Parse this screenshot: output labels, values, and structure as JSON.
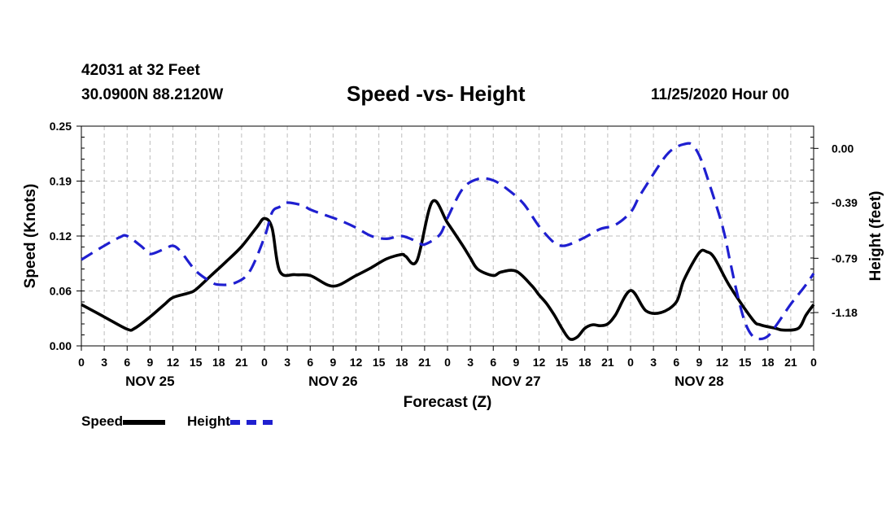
{
  "header": {
    "station": "42031 at 32 Feet",
    "coords": "30.0900N 88.2120W",
    "datetime": "11/25/2020 Hour 00"
  },
  "legend": {
    "speed_label": "Speed",
    "height_label": "Height"
  },
  "colors": {
    "speed": "#000000",
    "height": "#1f1fd0",
    "grid": "#bdbdbd"
  },
  "chart_data": {
    "type": "line",
    "title": "Speed -vs- Height",
    "xlabel": "Forecast (Z)",
    "ylabel": "Speed (Knots)",
    "y2label": "Height (feet)",
    "xlim": [
      0,
      96
    ],
    "ylim": [
      0.0,
      0.25
    ],
    "y2lim": [
      -1.42,
      0.16
    ],
    "y_ticks": [
      "0.00",
      "0.06",
      "0.12",
      "0.19",
      "0.25"
    ],
    "y_tick_values": [
      0.0,
      0.0625,
      0.125,
      0.1875,
      0.25
    ],
    "y2_ticks": [
      "0.00",
      "-0.39",
      "-0.79",
      "-1.18"
    ],
    "y2_tick_values": [
      0.0,
      -0.39,
      -0.79,
      -1.18
    ],
    "x_tick_labels": [
      "0",
      "3",
      "6",
      "9",
      "12",
      "15",
      "18",
      "21",
      "0",
      "3",
      "6",
      "9",
      "12",
      "15",
      "18",
      "21",
      "0",
      "3",
      "6",
      "9",
      "12",
      "15",
      "18",
      "21",
      "0",
      "3",
      "6",
      "9",
      "12",
      "15",
      "18",
      "21",
      "0"
    ],
    "day_labels": [
      {
        "label": "NOV 25",
        "x": 9
      },
      {
        "label": "NOV 26",
        "x": 33
      },
      {
        "label": "NOV 27",
        "x": 57
      },
      {
        "label": "NOV 28",
        "x": 81
      }
    ],
    "grid": true,
    "series": [
      {
        "name": "Speed",
        "axis": "left",
        "x": [
          0,
          3,
          6,
          7,
          9,
          11,
          12,
          14,
          15,
          17,
          19,
          21,
          23,
          24,
          25,
          26,
          28,
          30,
          33,
          36,
          38,
          40,
          42,
          42.5,
          44,
          46,
          48,
          50,
          51,
          52,
          54,
          55,
          57,
          59,
          60,
          61,
          62,
          63,
          64,
          65,
          66,
          67,
          68,
          69,
          70,
          72,
          74,
          76,
          78,
          79,
          81,
          82,
          83,
          85,
          88,
          89,
          91,
          92,
          94,
          95,
          96
        ],
        "y": [
          0.047,
          0.033,
          0.019,
          0.02,
          0.033,
          0.048,
          0.055,
          0.06,
          0.064,
          0.08,
          0.096,
          0.113,
          0.135,
          0.145,
          0.134,
          0.085,
          0.081,
          0.08,
          0.068,
          0.08,
          0.089,
          0.099,
          0.104,
          0.102,
          0.097,
          0.164,
          0.14,
          0.114,
          0.1,
          0.087,
          0.08,
          0.084,
          0.085,
          0.069,
          0.058,
          0.048,
          0.035,
          0.02,
          0.008,
          0.01,
          0.02,
          0.024,
          0.023,
          0.025,
          0.035,
          0.063,
          0.04,
          0.038,
          0.05,
          0.075,
          0.106,
          0.107,
          0.1,
          0.068,
          0.03,
          0.024,
          0.02,
          0.018,
          0.02,
          0.035,
          0.047
        ]
      },
      {
        "name": "Height",
        "axis": "right",
        "x": [
          0,
          3,
          5,
          6,
          8,
          9,
          11,
          12,
          13,
          15,
          17,
          18,
          20,
          22,
          24,
          25,
          26,
          27,
          29,
          30,
          32,
          34,
          36,
          38,
          40,
          42,
          44,
          45,
          47,
          48,
          50,
          52,
          54,
          56,
          58,
          60,
          62,
          63,
          64,
          66,
          68,
          70,
          72,
          73,
          74,
          76,
          77,
          78,
          79,
          80,
          81,
          82,
          84,
          85,
          86,
          87,
          88,
          89,
          90,
          91,
          92,
          93,
          94,
          95,
          96
        ],
        "y": [
          -0.8,
          -0.7,
          -0.64,
          -0.63,
          -0.71,
          -0.76,
          -0.72,
          -0.7,
          -0.74,
          -0.88,
          -0.96,
          -0.98,
          -0.97,
          -0.89,
          -0.64,
          -0.46,
          -0.42,
          -0.39,
          -0.41,
          -0.44,
          -0.48,
          -0.52,
          -0.57,
          -0.63,
          -0.65,
          -0.63,
          -0.67,
          -0.69,
          -0.62,
          -0.5,
          -0.29,
          -0.22,
          -0.23,
          -0.3,
          -0.4,
          -0.56,
          -0.68,
          -0.7,
          -0.69,
          -0.64,
          -0.58,
          -0.55,
          -0.46,
          -0.36,
          -0.27,
          -0.1,
          -0.03,
          0.01,
          0.03,
          0.03,
          -0.05,
          -0.2,
          -0.55,
          -0.8,
          -1.05,
          -1.25,
          -1.35,
          -1.37,
          -1.35,
          -1.28,
          -1.2,
          -1.12,
          -1.05,
          -0.98,
          -0.9
        ]
      }
    ]
  }
}
